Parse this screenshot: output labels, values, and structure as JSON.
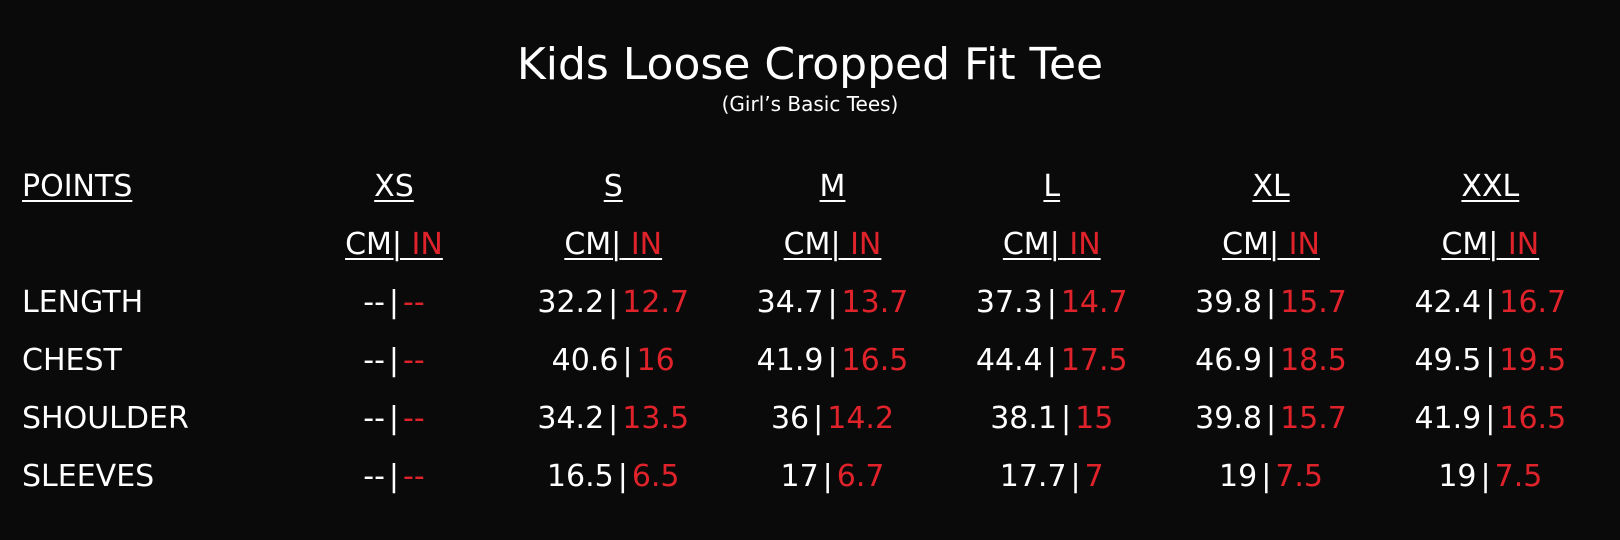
{
  "title": "Kids Loose Cropped Fit Tee",
  "subtitle": "(Girl’s Basic Tees)",
  "colors": {
    "background": "#0a0a0a",
    "text": "#ffffff",
    "inch": "#e0222b"
  },
  "points_header": "POINTS",
  "unit_cm": "CM",
  "unit_sep": "|",
  "unit_in": " IN",
  "sizes": [
    "XS",
    "S",
    "M",
    "L",
    "XL",
    "XXL"
  ],
  "rows": [
    {
      "label": "LENGTH",
      "cm": [
        "--",
        "32.2",
        "34.7",
        "37.3",
        "39.8",
        "42.4"
      ],
      "in": [
        "--",
        "12.7",
        "13.7",
        "14.7",
        "15.7",
        "16.7"
      ]
    },
    {
      "label": "CHEST",
      "cm": [
        "--",
        "40.6",
        "41.9",
        "44.4",
        "46.9",
        "49.5"
      ],
      "in": [
        "--",
        "16",
        "16.5",
        "17.5",
        "18.5",
        "19.5"
      ]
    },
    {
      "label": "SHOULDER",
      "cm": [
        "--",
        "34.2",
        "36",
        "38.1",
        "39.8",
        "41.9"
      ],
      "in": [
        "--",
        "13.5",
        "14.2",
        "15",
        "15.7",
        "16.5"
      ]
    },
    {
      "label": "SLEEVES",
      "cm": [
        "--",
        "16.5",
        "17",
        "17.7",
        "19",
        "19"
      ],
      "in": [
        "--",
        "6.5",
        "6.7",
        "7",
        "7.5",
        "7.5"
      ]
    }
  ]
}
